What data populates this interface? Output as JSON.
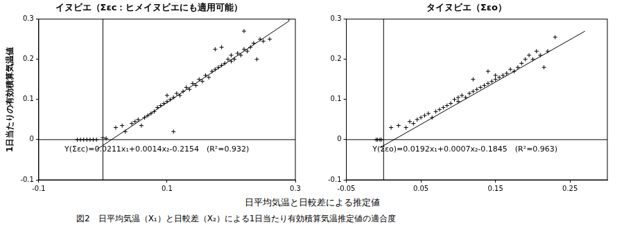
{
  "figure": {
    "xlabel": "日平均気温と日較差による推定値",
    "caption": "図2　日平均気温（X₁）と日較差（X₂）による1日当たり有効積算気温推定値の適合度"
  },
  "chart_data": [
    {
      "type": "scatter",
      "title": "イヌビエ（Σεc：ヒメイヌビエにも適用可能）",
      "ylabel": "1日当たりの有効積算気温値",
      "annotation": "Y(Σεc)=0.0211x₁+0.0014x₂-0.2154　(R²=0.932)",
      "xlim": [
        -0.1,
        0.3
      ],
      "xticks": [
        -0.1,
        0.1,
        0.3
      ],
      "ylim": [
        -0.1,
        0.3
      ],
      "yticks": [
        -0.1,
        0,
        0.1,
        0.2,
        0.3
      ],
      "grid": false,
      "reference_lines": [
        {
          "axis": "x",
          "value": 0
        },
        {
          "axis": "y",
          "value": 0
        }
      ],
      "series": [
        {
          "type": "scatter",
          "marker": "cross",
          "color": "#000000",
          "values": [
            [
              -0.04,
              0
            ],
            [
              -0.035,
              0
            ],
            [
              -0.03,
              0
            ],
            [
              -0.025,
              0
            ],
            [
              -0.02,
              0
            ],
            [
              -0.015,
              0
            ],
            [
              -0.01,
              0
            ],
            [
              0.005,
              0.003
            ],
            [
              0.0,
              0.005
            ],
            [
              0.02,
              0.03
            ],
            [
              0.03,
              0.035
            ],
            [
              0.035,
              0.02
            ],
            [
              0.045,
              0.04
            ],
            [
              0.05,
              0.045
            ],
            [
              0.055,
              0.05
            ],
            [
              0.06,
              0.035
            ],
            [
              0.065,
              0.055
            ],
            [
              0.07,
              0.06
            ],
            [
              0.075,
              0.065
            ],
            [
              0.08,
              0.07
            ],
            [
              0.085,
              0.08
            ],
            [
              0.09,
              0.085
            ],
            [
              0.095,
              0.09
            ],
            [
              0.1,
              0.095
            ],
            [
              0.1,
              0.11
            ],
            [
              0.105,
              0.1
            ],
            [
              0.11,
              0.105
            ],
            [
              0.11,
              0.02
            ],
            [
              0.115,
              0.115
            ],
            [
              0.12,
              0.11
            ],
            [
              0.125,
              0.12
            ],
            [
              0.13,
              0.13
            ],
            [
              0.135,
              0.125
            ],
            [
              0.14,
              0.14
            ],
            [
              0.145,
              0.135
            ],
            [
              0.15,
              0.15
            ],
            [
              0.155,
              0.145
            ],
            [
              0.16,
              0.16
            ],
            [
              0.165,
              0.155
            ],
            [
              0.17,
              0.17
            ],
            [
              0.175,
              0.175
            ],
            [
              0.18,
              0.18
            ],
            [
              0.185,
              0.185
            ],
            [
              0.19,
              0.19
            ],
            [
              0.195,
              0.2
            ],
            [
              0.2,
              0.195
            ],
            [
              0.2,
              0.21
            ],
            [
              0.205,
              0.2
            ],
            [
              0.21,
              0.215
            ],
            [
              0.215,
              0.21
            ],
            [
              0.22,
              0.225
            ],
            [
              0.22,
              0.27
            ],
            [
              0.225,
              0.22
            ],
            [
              0.23,
              0.23
            ],
            [
              0.235,
              0.24
            ],
            [
              0.24,
              0.2
            ],
            [
              0.245,
              0.25
            ],
            [
              0.25,
              0.245
            ],
            [
              0.26,
              0.25
            ],
            [
              0.175,
              0.225
            ],
            [
              0.185,
              0.23
            ],
            [
              0.29,
              0.3
            ]
          ]
        },
        {
          "type": "line",
          "line_style": "solid",
          "color": "#000000",
          "values": [
            [
              -0.01,
              -0.025
            ],
            [
              0.29,
              0.295
            ]
          ]
        }
      ]
    },
    {
      "type": "scatter",
      "title": "タイヌビエ（Σεo）",
      "annotation": "Y(Σεo)=0.0192x₁+0.0007x₂-0.1845　(R²=0.963)",
      "xlim": [
        -0.05,
        0.3
      ],
      "xticks": [
        -0.05,
        0.05,
        0.15,
        0.25
      ],
      "ylim": [
        -0.1,
        0.3
      ],
      "yticks": [
        -0.1,
        0,
        0.1,
        0.2,
        0.3
      ],
      "grid": false,
      "reference_lines": [
        {
          "axis": "x",
          "value": 0
        },
        {
          "axis": "y",
          "value": 0
        }
      ],
      "series": [
        {
          "type": "scatter",
          "marker": "cross",
          "color": "#000000",
          "values": [
            [
              -0.01,
              0
            ],
            [
              -0.008,
              0
            ],
            [
              -0.005,
              0
            ],
            [
              -0.003,
              0
            ],
            [
              0.01,
              0.03
            ],
            [
              0.02,
              0.035
            ],
            [
              0.03,
              0.03
            ],
            [
              0.035,
              0.045
            ],
            [
              0.04,
              0.04
            ],
            [
              0.045,
              0.05
            ],
            [
              0.05,
              0.055
            ],
            [
              0.055,
              0.06
            ],
            [
              0.06,
              0.065
            ],
            [
              0.065,
              0.055
            ],
            [
              0.07,
              0.07
            ],
            [
              0.075,
              0.075
            ],
            [
              0.08,
              0.08
            ],
            [
              0.085,
              0.085
            ],
            [
              0.09,
              0.09
            ],
            [
              0.095,
              0.1
            ],
            [
              0.1,
              0.095
            ],
            [
              0.1,
              0.105
            ],
            [
              0.105,
              0.11
            ],
            [
              0.11,
              0.105
            ],
            [
              0.115,
              0.115
            ],
            [
              0.12,
              0.12
            ],
            [
              0.125,
              0.125
            ],
            [
              0.13,
              0.13
            ],
            [
              0.135,
              0.135
            ],
            [
              0.14,
              0.14
            ],
            [
              0.145,
              0.145
            ],
            [
              0.15,
              0.15
            ],
            [
              0.15,
              0.16
            ],
            [
              0.155,
              0.155
            ],
            [
              0.16,
              0.16
            ],
            [
              0.165,
              0.165
            ],
            [
              0.17,
              0.175
            ],
            [
              0.175,
              0.17
            ],
            [
              0.18,
              0.18
            ],
            [
              0.185,
              0.19
            ],
            [
              0.19,
              0.2
            ],
            [
              0.195,
              0.21
            ],
            [
              0.2,
              0.2
            ],
            [
              0.205,
              0.22
            ],
            [
              0.21,
              0.21
            ],
            [
              0.215,
              0.18
            ],
            [
              0.22,
              0.22
            ],
            [
              0.23,
              0.255
            ],
            [
              0.14,
              0.17
            ],
            [
              0.12,
              0.15
            ]
          ]
        },
        {
          "type": "line",
          "line_style": "solid",
          "color": "#000000",
          "values": [
            [
              -0.005,
              -0.02
            ],
            [
              0.27,
              0.27
            ]
          ]
        }
      ]
    }
  ]
}
